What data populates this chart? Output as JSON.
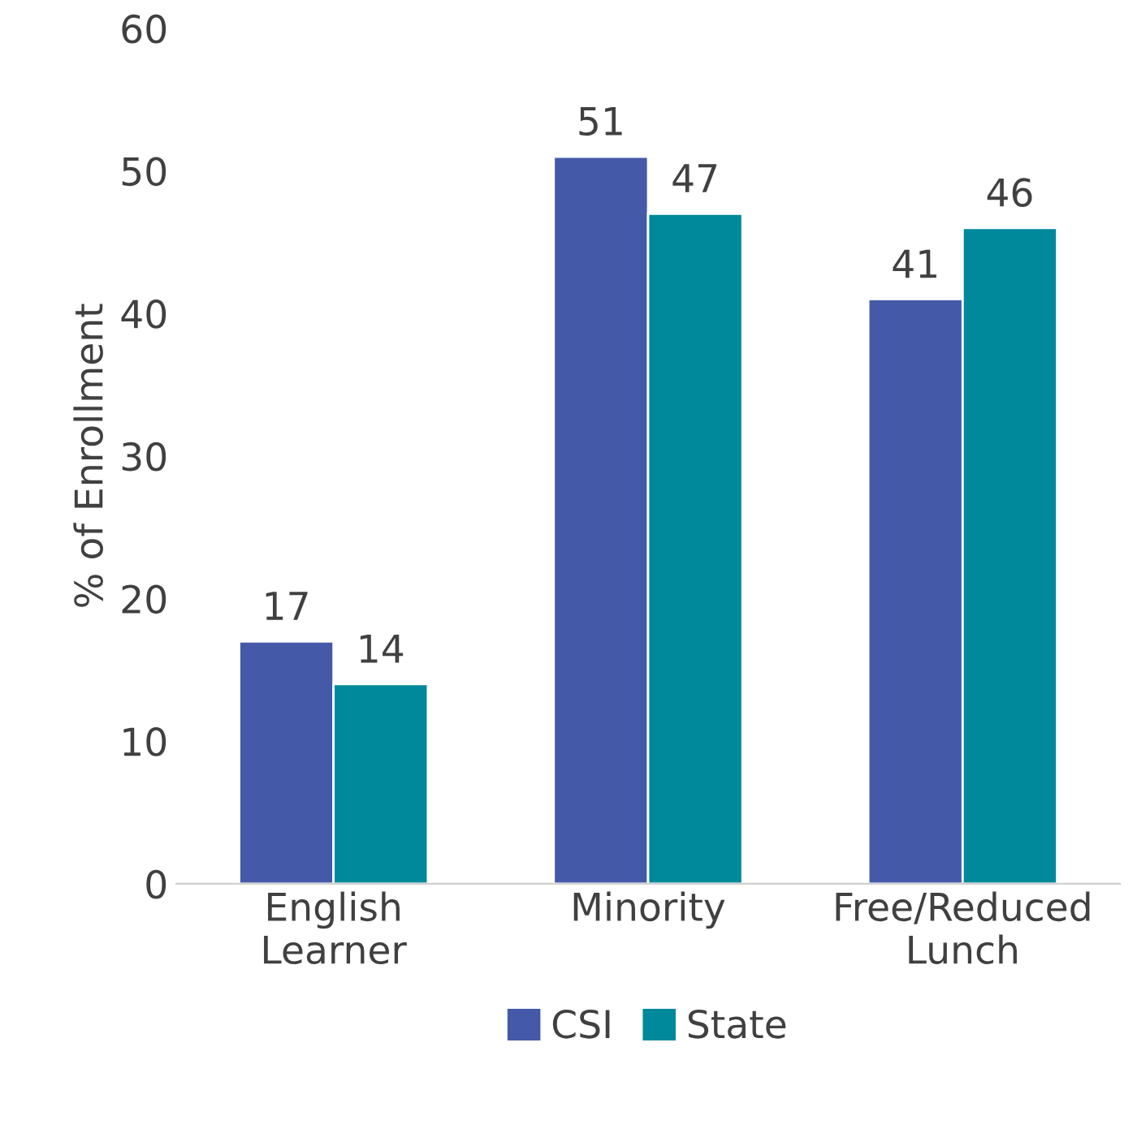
{
  "chart_data": {
    "type": "bar",
    "ylabel": "% of Enrollment",
    "categories": [
      "English\nLearner",
      "Minority",
      "Free/Reduced\nLunch"
    ],
    "series": [
      {
        "name": "CSI",
        "color": "#4459a8",
        "values": [
          17,
          51,
          41
        ]
      },
      {
        "name": "State",
        "color": "#00899b",
        "values": [
          14,
          47,
          46
        ]
      }
    ],
    "ylim": [
      0,
      60
    ],
    "yticks": [
      0,
      10,
      20,
      30,
      40,
      50,
      60
    ],
    "grid": false,
    "legend": "bottom",
    "data_labels": true
  }
}
